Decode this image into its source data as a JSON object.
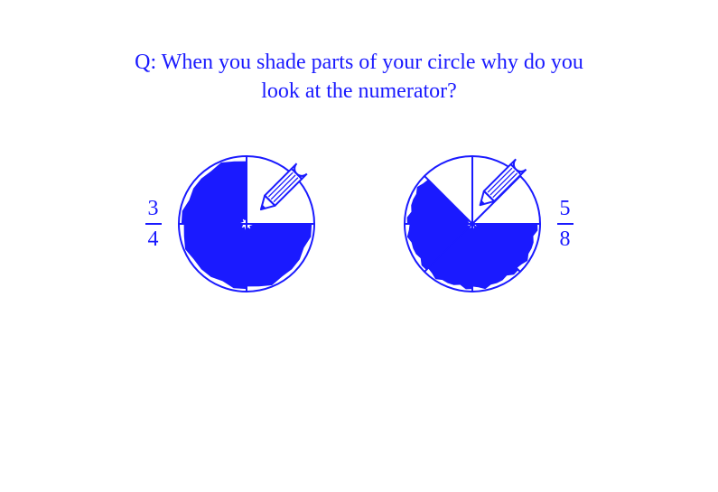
{
  "colors": {
    "primary": "#1a1aff",
    "fill": "#1a1aff",
    "background": "#ffffff",
    "stroke": "#1a1aff"
  },
  "question": {
    "line1": "Q: When you shade parts of your circle why do you",
    "line2": "look at the numerator?"
  },
  "question_fontsize": 24,
  "figures": {
    "left": {
      "numerator": "3",
      "denominator": "4",
      "fraction_side": "left",
      "pie": {
        "type": "pie",
        "total_slices": 4,
        "shaded_slices": 3,
        "start_angle": -90,
        "shaded_indices": [
          1,
          2,
          3
        ],
        "pencil_slice_index": 0,
        "radius": 75,
        "stroke_width": 2,
        "shade_color": "#1a1aff",
        "outline_color": "#1a1aff"
      }
    },
    "right": {
      "numerator": "5",
      "denominator": "8",
      "fraction_side": "right",
      "pie": {
        "type": "pie",
        "total_slices": 8,
        "shaded_slices": 5,
        "start_angle": -90,
        "shaded_indices": [
          2,
          3,
          4,
          5,
          6
        ],
        "pencil_slice_index": 0,
        "radius": 75,
        "stroke_width": 2,
        "shade_color": "#1a1aff",
        "outline_color": "#1a1aff"
      }
    }
  },
  "pencil": {
    "angle_deg": 45,
    "length": 80,
    "color": "#1a1aff"
  }
}
